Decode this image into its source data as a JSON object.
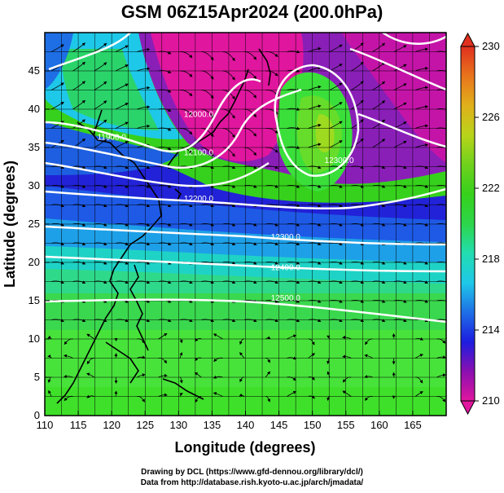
{
  "title": "GSM 06Z15Apr2024 (200.0hPa)",
  "credits": {
    "line1": "Drawing by DCL (https://www.gfd-dennou.org/library/dcl/)",
    "line2": "Data from http://database.rish.kyoto-u.ac.jp/arch/jmadata/"
  },
  "chart_data": {
    "type": "heatmap",
    "subtype": "weather map: temperature shading, geopotential height contours, wind streamlines",
    "xlabel": "Longitude (degrees)",
    "ylabel": "Latitude (degrees)",
    "xlim": [
      110,
      170
    ],
    "ylim": [
      0,
      50
    ],
    "xticks": [
      "110",
      "115",
      "120",
      "125",
      "130",
      "135",
      "140",
      "145",
      "150",
      "155",
      "160",
      "165"
    ],
    "yticks": [
      "0",
      "5",
      "10",
      "15",
      "20",
      "25",
      "30",
      "35",
      "40",
      "45"
    ],
    "grid": true,
    "colorbar": {
      "min": 210,
      "max": 230,
      "labels": [
        "210",
        "214",
        "218",
        "222",
        "226",
        "230"
      ],
      "colors": [
        "#e0169e",
        "#8a0fb0",
        "#1d1de0",
        "#1e6fe6",
        "#1ec8e8",
        "#22ddb0",
        "#2dd64a",
        "#36d11c",
        "#6fd11c",
        "#b9d41a",
        "#e0b01a",
        "#e8741c",
        "#e0301e"
      ]
    },
    "contours": [
      {
        "label": "11900.0",
        "lon": 120,
        "lat": 36
      },
      {
        "label": "12000.0",
        "lon": 133,
        "lat": 39
      },
      {
        "label": "12100.0",
        "lon": 133,
        "lat": 34
      },
      {
        "label": "12200.0",
        "lon": 133,
        "lat": 28
      },
      {
        "label": "12300.0",
        "lon": 154,
        "lat": 33
      },
      {
        "label": "12300.0",
        "lon": 146,
        "lat": 23
      },
      {
        "label": "12400.0",
        "lon": 146,
        "lat": 19
      },
      {
        "label": "12500.0",
        "lon": 146,
        "lat": 15
      }
    ]
  }
}
